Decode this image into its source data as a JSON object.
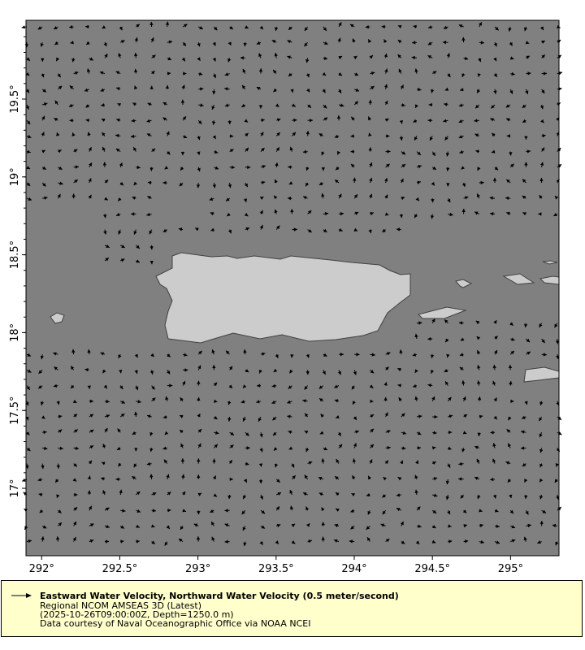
{
  "map": {
    "ocean_color": "#808080",
    "land_color": "#cccccc",
    "coast_color": "#404040",
    "arrow_color": "#000000",
    "lon_range": [
      291.9,
      295.31
    ],
    "lat_range": [
      16.567,
      20.006
    ],
    "x_ticks": [
      "292°",
      "292.5°",
      "293°",
      "293.5°",
      "294°",
      "294.5°",
      "295°"
    ],
    "x_tick_values": [
      292,
      292.5,
      293,
      293.5,
      294,
      294.5,
      295
    ],
    "y_ticks": [
      "17°",
      "17.5°",
      "18°",
      "18.5°",
      "19°",
      "19.5°"
    ],
    "y_tick_values": [
      17,
      17.5,
      18,
      18.5,
      19,
      19.5
    ]
  },
  "legend": {
    "icon": "arrow-right-icon",
    "title": "Eastward Water Velocity, Northward Water Velocity (0.5 meter/second)",
    "line2": "Regional NCOM AMSEAS 3D (Latest)",
    "line3": "(2025-10-26T09:00:00Z, Depth=1250.0 m)",
    "line4": "Data courtesy of Naval Oceanographic Office via NOAA NCEI"
  }
}
